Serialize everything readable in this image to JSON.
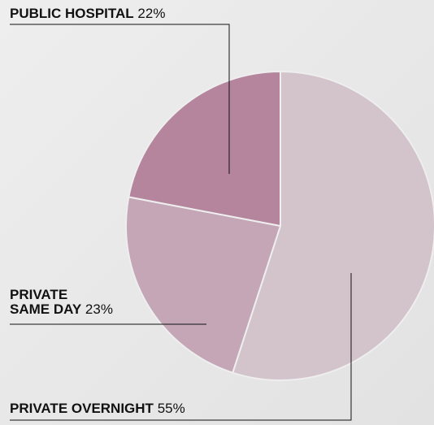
{
  "chart_data": {
    "type": "pie",
    "categories": [
      "PRIVATE OVERNIGHT",
      "PRIVATE SAME DAY",
      "PUBLIC HOSPITAL"
    ],
    "values": [
      55,
      23,
      22
    ],
    "value_labels": [
      "55%",
      "23%",
      "22%"
    ],
    "colors": [
      "#d3c4cc",
      "#c4a6b7",
      "#b4859d"
    ]
  }
}
